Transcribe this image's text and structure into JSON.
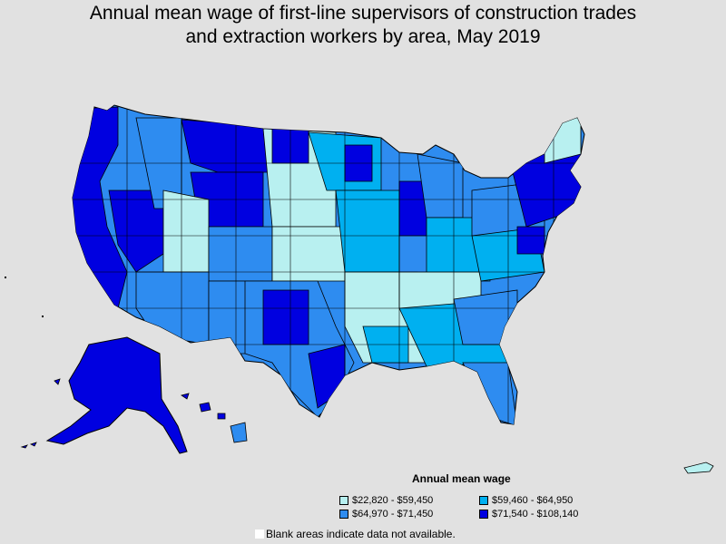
{
  "title": {
    "line1": "Annual mean wage of first-line supervisors of construction trades",
    "line2": "and extraction workers by area, May 2019"
  },
  "legend": {
    "title": "Annual mean wage",
    "items": [
      {
        "label": "$22,820 - $59,450",
        "color": "#b8f0f0"
      },
      {
        "label": "$59,460 - $64,950",
        "color": "#00b0f0"
      },
      {
        "label": "$64,970 - $71,450",
        "color": "#2e8cf0"
      },
      {
        "label": "$71,540 - $108,140",
        "color": "#0000e0"
      }
    ]
  },
  "note": "Blank areas indicate data not available.",
  "colors": {
    "background": "#e1e1e1",
    "border": "#000000",
    "tier1": "#b8f0f0",
    "tier2": "#00b0f0",
    "tier3": "#2e8cf0",
    "tier4": "#0000e0"
  }
}
